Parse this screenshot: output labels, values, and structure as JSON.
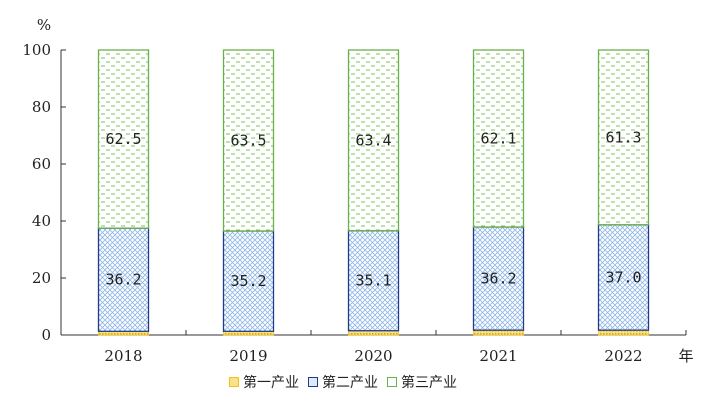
{
  "chart_data": {
    "type": "bar",
    "stacked": true,
    "percent_stacked": true,
    "unit_label": "%",
    "xlabel": "年",
    "categories": [
      "2018",
      "2019",
      "2020",
      "2021",
      "2022"
    ],
    "ylim": [
      0,
      100
    ],
    "yticks": [
      0,
      20,
      40,
      60,
      80,
      100
    ],
    "grid": false,
    "legend_position": "bottom",
    "series": [
      {
        "name": "第一产业",
        "values": [
          1.3,
          1.3,
          1.5,
          1.7,
          1.7
        ],
        "labels": [
          "",
          "",
          "",
          "",
          ""
        ],
        "color": "#f2c21b",
        "pattern": "dense-dots"
      },
      {
        "name": "第二产业",
        "values": [
          36.2,
          35.2,
          35.1,
          36.2,
          37.0
        ],
        "labels": [
          "36.2",
          "35.2",
          "35.1",
          "36.2",
          "37.0"
        ],
        "color": "#1f3a8a",
        "pattern": "cross-hatch"
      },
      {
        "name": "第三产业",
        "values": [
          62.5,
          63.5,
          63.4,
          62.1,
          61.3
        ],
        "labels": [
          "62.5",
          "63.5",
          "63.4",
          "62.1",
          "61.3"
        ],
        "color": "#6ab04c",
        "pattern": "dashes"
      }
    ]
  }
}
